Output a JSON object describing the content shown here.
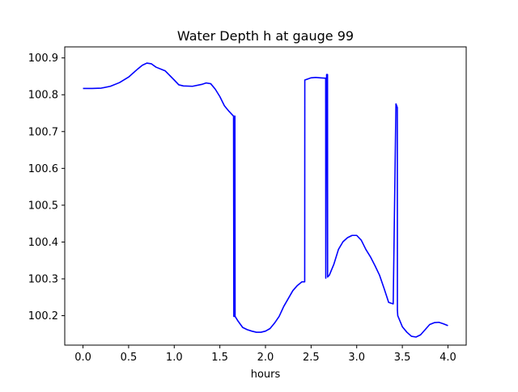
{
  "chart_data": {
    "type": "line",
    "title": "Water Depth h at gauge 99",
    "xlabel": "hours",
    "ylabel": "",
    "xlim": [
      -0.2,
      4.2
    ],
    "ylim": [
      100.12,
      100.93
    ],
    "xticks": [
      0.0,
      0.5,
      1.0,
      1.5,
      2.0,
      2.5,
      3.0,
      3.5,
      4.0
    ],
    "xtick_labels": [
      "0.0",
      "0.5",
      "1.0",
      "1.5",
      "2.0",
      "2.5",
      "3.0",
      "3.5",
      "4.0"
    ],
    "yticks": [
      100.2,
      100.3,
      100.4,
      100.5,
      100.6,
      100.7,
      100.8,
      100.9
    ],
    "ytick_labels": [
      "100.2",
      "100.3",
      "100.4",
      "100.5",
      "100.6",
      "100.7",
      "100.8",
      "100.9"
    ],
    "grid": false,
    "series": [
      {
        "color": "#0000ff",
        "x": [
          0.0,
          0.1,
          0.2,
          0.3,
          0.4,
          0.5,
          0.6,
          0.65,
          0.7,
          0.75,
          0.8,
          0.9,
          1.0,
          1.05,
          1.1,
          1.2,
          1.3,
          1.35,
          1.4,
          1.45,
          1.5,
          1.55,
          1.6,
          1.65,
          1.653,
          1.658,
          1.66,
          1.665,
          1.667,
          1.7,
          1.75,
          1.8,
          1.85,
          1.9,
          1.95,
          2.0,
          2.05,
          2.1,
          2.15,
          2.2,
          2.3,
          2.35,
          2.4,
          2.43,
          2.431,
          2.5,
          2.55,
          2.6,
          2.65,
          2.66,
          2.661,
          2.67,
          2.68,
          2.681,
          2.7,
          2.75,
          2.8,
          2.85,
          2.9,
          2.95,
          3.0,
          3.05,
          3.1,
          3.15,
          3.2,
          3.25,
          3.3,
          3.35,
          3.4,
          3.43,
          3.431,
          3.445,
          3.446,
          3.45,
          3.5,
          3.55,
          3.6,
          3.65,
          3.7,
          3.75,
          3.8,
          3.85,
          3.9,
          3.95,
          4.0
        ],
        "y": [
          100.817,
          100.817,
          100.818,
          100.823,
          100.833,
          100.848,
          100.87,
          100.88,
          100.886,
          100.884,
          100.875,
          100.865,
          100.84,
          100.827,
          100.824,
          100.823,
          100.828,
          100.832,
          100.83,
          100.815,
          100.795,
          100.77,
          100.755,
          100.742,
          100.198,
          100.742,
          100.198,
          100.742,
          100.198,
          100.185,
          100.168,
          100.162,
          100.158,
          100.155,
          100.155,
          100.158,
          100.165,
          100.18,
          100.198,
          100.225,
          100.268,
          100.282,
          100.292,
          100.292,
          100.84,
          100.846,
          100.847,
          100.846,
          100.845,
          100.845,
          100.302,
          100.855,
          100.855,
          100.305,
          100.31,
          100.34,
          100.38,
          100.401,
          100.412,
          100.418,
          100.418,
          100.405,
          100.38,
          100.36,
          100.336,
          100.31,
          100.274,
          100.236,
          100.232,
          100.775,
          100.775,
          100.765,
          100.215,
          100.2,
          100.17,
          100.155,
          100.144,
          100.142,
          100.148,
          100.162,
          100.176,
          100.181,
          100.182,
          100.178,
          100.173
        ]
      }
    ]
  }
}
